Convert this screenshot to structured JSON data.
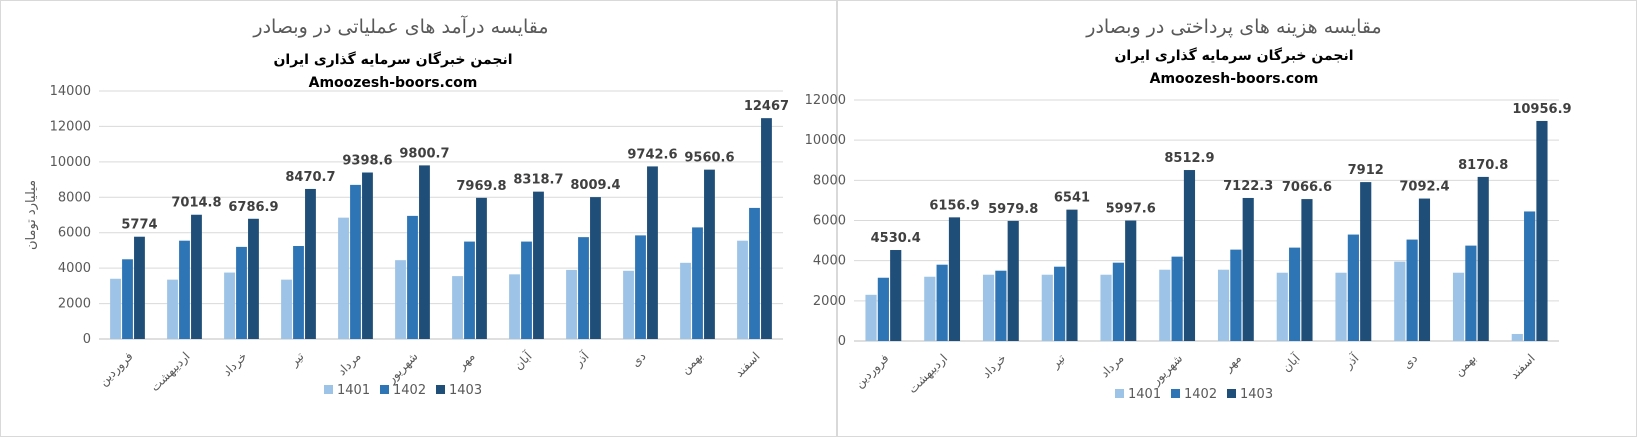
{
  "chart_data": [
    {
      "type": "bar",
      "title": "مقایسه درآمد های عملیاتی در وبصادر",
      "subtitle_lines": [
        "انجمن خبرگان سرمایه گذاری ایران",
        "Amoozesh-boors.com"
      ],
      "ylabel": "میلیارد تومان",
      "xlabel": "",
      "ylim": [
        0,
        14000
      ],
      "yticks": [
        0,
        2000,
        4000,
        6000,
        8000,
        10000,
        12000,
        14000
      ],
      "grid": true,
      "legend_position": "bottom",
      "categories": [
        "فروردین",
        "اردیبهشت",
        "خرداد",
        "تیر",
        "مرداد",
        "شهریور",
        "مهر",
        "آبان",
        "آذر",
        "دی",
        "بهمن",
        "اسفند"
      ],
      "series": [
        {
          "name": "1401",
          "color": "#9dc3e6",
          "values": [
            3400,
            3350,
            3750,
            3350,
            6850,
            4450,
            3550,
            3650,
            3900,
            3850,
            4300,
            5550
          ]
        },
        {
          "name": "1402",
          "color": "#2e75b6",
          "values": [
            4500,
            5550,
            5200,
            5250,
            8700,
            6950,
            5500,
            5500,
            5750,
            5850,
            6300,
            7400
          ]
        },
        {
          "name": "1403",
          "color": "#1f4e79",
          "values": [
            5774,
            7014.8,
            6786.9,
            8470.7,
            9398.6,
            9800.7,
            7969.8,
            8318.7,
            8009.4,
            9742.6,
            9560.6,
            12467
          ]
        }
      ],
      "labeled_series": "1403"
    },
    {
      "type": "bar",
      "title": "مقایسه هزینه های پرداختی در وبصادر",
      "subtitle_lines": [
        "انجمن خبرگان سرمایه گذاری ایران",
        "Amoozesh-boors.com"
      ],
      "ylabel": "",
      "xlabel": "",
      "ylim": [
        0,
        12000
      ],
      "yticks": [
        0,
        2000,
        4000,
        6000,
        8000,
        10000,
        12000
      ],
      "grid": true,
      "legend_position": "bottom",
      "categories": [
        "فروردین",
        "اردیبهشت",
        "خرداد",
        "تیر",
        "مرداد",
        "شهریور",
        "مهر",
        "آبان",
        "آذر",
        "دی",
        "بهمن",
        "اسفند"
      ],
      "series": [
        {
          "name": "1401",
          "color": "#9dc3e6",
          "values": [
            2300,
            3200,
            3300,
            3300,
            3300,
            3550,
            3550,
            3400,
            3400,
            3950,
            3400,
            350
          ]
        },
        {
          "name": "1402",
          "color": "#2e75b6",
          "values": [
            3150,
            3800,
            3500,
            3700,
            3900,
            4200,
            4550,
            4650,
            5300,
            5050,
            4750,
            6450
          ]
        },
        {
          "name": "1403",
          "color": "#1f4e79",
          "values": [
            4530.4,
            6156.9,
            5979.8,
            6541,
            5997.6,
            8512.9,
            7122.3,
            7066.6,
            7912,
            7092.4,
            8170.8,
            10956.9
          ]
        }
      ],
      "labeled_series": "1403"
    }
  ]
}
